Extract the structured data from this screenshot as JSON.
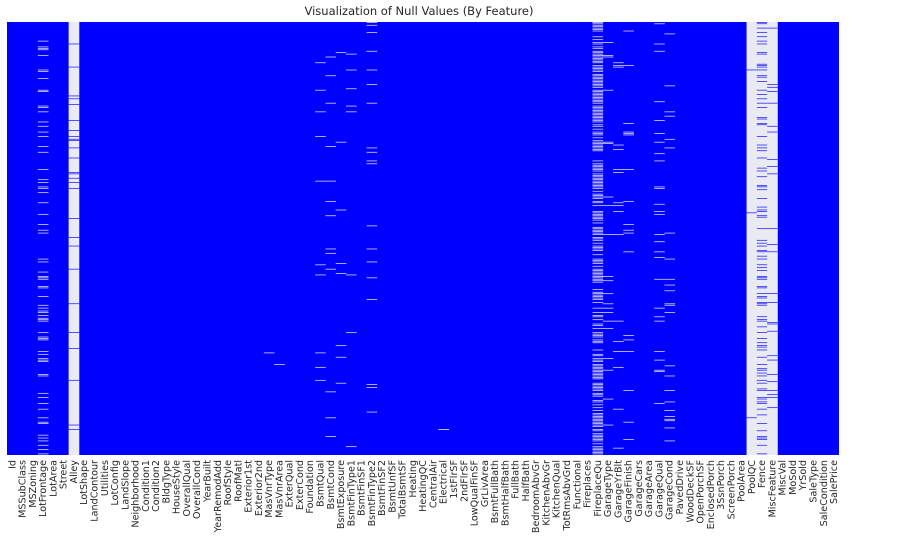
{
  "chart_data": {
    "type": "heatmap",
    "title": "Visualization of Null Values (By Feature)",
    "xlabel": "",
    "ylabel": "",
    "y_ticks_visible": false,
    "colors": {
      "present": "#0000ff",
      "missing": "#eaeaf2"
    },
    "rows": 1460,
    "columns": [
      "Id",
      "MSSubClass",
      "MSZoning",
      "LotFrontage",
      "LotArea",
      "Street",
      "Alley",
      "LotShape",
      "LandContour",
      "Utilities",
      "LotConfig",
      "LandSlope",
      "Neighborhood",
      "Condition1",
      "Condition2",
      "BldgType",
      "HouseStyle",
      "OverallQual",
      "OverallCond",
      "YearBuilt",
      "YearRemodAdd",
      "RoofStyle",
      "RoofMatl",
      "Exterior1st",
      "Exterior2nd",
      "MasVnrType",
      "MasVnrArea",
      "ExterQual",
      "ExterCond",
      "Foundation",
      "BsmtQual",
      "BsmtCond",
      "BsmtExposure",
      "BsmtFinType1",
      "BsmtFinSF1",
      "BsmtFinType2",
      "BsmtFinSF2",
      "BsmtUnfSF",
      "TotalBsmtSF",
      "Heating",
      "HeatingQC",
      "CentralAir",
      "Electrical",
      "1stFlrSF",
      "2ndFlrSF",
      "LowQualFinSF",
      "GrLivArea",
      "BsmtFullBath",
      "BsmtHalfBath",
      "FullBath",
      "HalfBath",
      "BedroomAbvGr",
      "KitchenAbvGr",
      "KitchenQual",
      "TotRmsAbvGrd",
      "Functional",
      "Fireplaces",
      "FireplaceQu",
      "GarageType",
      "GarageYrBlt",
      "GarageFinish",
      "GarageCars",
      "GarageArea",
      "GarageQual",
      "GarageCond",
      "PavedDrive",
      "WoodDeckSF",
      "OpenPorchSF",
      "EnclosedPorch",
      "3SsnPorch",
      "ScreenPorch",
      "PoolArea",
      "PoolQC",
      "Fence",
      "MiscFeature",
      "MiscVal",
      "MoSold",
      "YrSold",
      "SaleType",
      "SaleCondition",
      "SalePrice"
    ],
    "missing_fraction": {
      "LotFrontage": 0.18,
      "Alley": 0.94,
      "MasVnrType": 0.006,
      "MasVnrArea": 0.006,
      "BsmtQual": 0.025,
      "BsmtCond": 0.025,
      "BsmtExposure": 0.026,
      "BsmtFinType1": 0.025,
      "BsmtFinType2": 0.026,
      "Electrical": 0.001,
      "FireplaceQu": 0.47,
      "GarageType": 0.055,
      "GarageYrBlt": 0.055,
      "GarageFinish": 0.055,
      "GarageQual": 0.055,
      "GarageCond": 0.055,
      "PoolQC": 0.995,
      "Fence": 0.81,
      "MiscFeature": 0.96
    }
  }
}
